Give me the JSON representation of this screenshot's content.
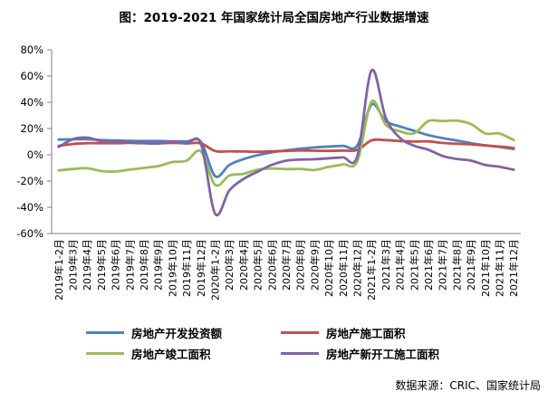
{
  "title": "图：2019-2021 年国家统计局全国房地产行业数据增速",
  "footer": {
    "source": "数据来源：CRIC、国家统计局"
  },
  "chart_data": {
    "type": "line",
    "title": "图：2019-2021 年国家统计局全国房地产行业数据增速",
    "xlabel": "",
    "ylabel": "",
    "ylim": [
      -60,
      80
    ],
    "yticks": [
      80,
      60,
      40,
      20,
      0,
      -20,
      -40,
      -60
    ],
    "ytick_labels": [
      "80%",
      "60%",
      "40%",
      "20%",
      "0%",
      "-20%",
      "-40%",
      "-60%"
    ],
    "grid": false,
    "line_style": "smooth",
    "legend_position": "bottom",
    "axis_color": "#808080",
    "categories": [
      "2019年1-2月",
      "2019年3月",
      "2019年4月",
      "2019年5月",
      "2019年6月",
      "2019年7月",
      "2019年8月",
      "2019年9月",
      "2019年10月",
      "2019年11月",
      "2019年12月",
      "2020年1-2月",
      "2020年3月",
      "2020年4月",
      "2020年5月",
      "2020年6月",
      "2020年7月",
      "2020年8月",
      "2020年9月",
      "2020年10月",
      "2020年11月",
      "2020年12月",
      "2021年1-2月",
      "2021年3月",
      "2021年4月",
      "2021年5月",
      "2021年6月",
      "2021年7月",
      "2021年8月",
      "2021年9月",
      "2021年10月",
      "2021年11月",
      "2021年12月"
    ],
    "unit": "percent",
    "series": [
      {
        "name": "房地产开发投资额",
        "color": "#4F81BD",
        "values": [
          11.6,
          11.8,
          11.9,
          11.2,
          10.9,
          10.6,
          10.5,
          10.5,
          10.3,
          10.2,
          9.9,
          -16.3,
          -7.7,
          -3.3,
          -0.3,
          1.9,
          3.4,
          4.6,
          5.6,
          6.3,
          6.8,
          7.0,
          38.3,
          25.6,
          21.6,
          18.3,
          15.0,
          12.7,
          10.9,
          8.8,
          7.2,
          6.0,
          4.4
        ]
      },
      {
        "name": "房地产施工面积",
        "color": "#C0504D",
        "values": [
          6.8,
          8.2,
          8.8,
          8.8,
          8.8,
          9.0,
          8.8,
          8.7,
          9.0,
          8.7,
          8.7,
          2.9,
          2.6,
          2.5,
          2.3,
          2.6,
          3.0,
          3.3,
          3.1,
          3.0,
          3.2,
          3.7,
          11.0,
          11.2,
          10.5,
          10.1,
          10.2,
          9.0,
          8.4,
          7.9,
          7.1,
          6.3,
          5.2
        ]
      },
      {
        "name": "房地产竣工面积",
        "color": "#9BBB59",
        "values": [
          -11.9,
          -10.8,
          -10.3,
          -12.4,
          -12.7,
          -11.3,
          -10.0,
          -8.6,
          -5.5,
          -4.5,
          2.6,
          -22.9,
          -15.8,
          -14.5,
          -11.3,
          -10.5,
          -10.9,
          -10.8,
          -11.6,
          -9.2,
          -7.3,
          -4.9,
          40.4,
          22.9,
          17.9,
          16.4,
          25.7,
          25.7,
          26.0,
          23.4,
          16.3,
          16.2,
          11.2
        ]
      },
      {
        "name": "房地产新开工施工面积",
        "color": "#8064A2",
        "values": [
          6.0,
          11.9,
          13.1,
          10.5,
          10.1,
          9.5,
          8.9,
          8.6,
          10.0,
          8.6,
          8.5,
          -44.9,
          -27.2,
          -18.4,
          -12.8,
          -7.6,
          -4.5,
          -3.6,
          -3.4,
          -2.6,
          -2.0,
          -1.2,
          64.3,
          28.2,
          12.8,
          6.9,
          3.8,
          -0.9,
          -3.2,
          -4.5,
          -7.7,
          -9.1,
          -11.4
        ]
      }
    ]
  }
}
